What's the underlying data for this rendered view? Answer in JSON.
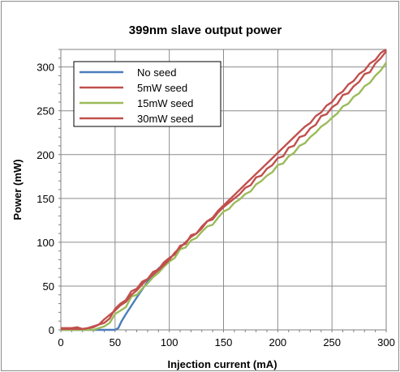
{
  "chart_data": {
    "type": "line",
    "title": "399nm slave output power",
    "xlabel": "Injection current (mA)",
    "ylabel": "Power (mW)",
    "xlim": [
      0,
      300
    ],
    "ylim": [
      0,
      320
    ],
    "xticks": [
      "0",
      "50",
      "100",
      "150",
      "200",
      "250",
      "300"
    ],
    "yticks": [
      "0",
      "50",
      "100",
      "150",
      "200",
      "250",
      "300"
    ],
    "grid": true,
    "legend_position": "top-left",
    "series": [
      {
        "name": "No seed",
        "color": "#4a7ebb",
        "x": [
          0,
          30,
          50,
          53,
          56,
          60,
          70,
          80,
          90,
          100
        ],
        "y": [
          0,
          0,
          0,
          2,
          10,
          18,
          37,
          55,
          70,
          80
        ]
      },
      {
        "name": "5mW seed",
        "color": "#c0504d",
        "x": [
          0,
          10,
          15,
          20,
          25,
          30,
          35,
          40,
          45,
          50,
          55,
          60,
          65,
          70,
          75,
          80,
          85,
          90,
          95,
          100,
          105,
          110,
          115,
          120,
          125,
          130,
          135,
          140,
          145,
          150,
          155,
          160,
          165,
          170,
          175,
          180,
          185,
          190,
          195,
          200,
          205,
          210,
          215,
          220,
          225,
          230,
          235,
          240,
          245,
          250,
          255,
          260,
          265,
          270,
          275,
          280,
          285,
          290,
          295,
          300
        ],
        "y": [
          2,
          2,
          3,
          1,
          2,
          4,
          6,
          8,
          13,
          24,
          30,
          34,
          44,
          47,
          55,
          58,
          66,
          69,
          77,
          82,
          86,
          96,
          98,
          108,
          110,
          116,
          124,
          126,
          134,
          140,
          145,
          150,
          155,
          162,
          165,
          174,
          176,
          184,
          188,
          196,
          198,
          208,
          210,
          220,
          222,
          230,
          234,
          244,
          246,
          254,
          258,
          268,
          270,
          278,
          283,
          292,
          294,
          304,
          310,
          318
        ]
      },
      {
        "name": "15mW seed",
        "color": "#9bbb59",
        "x": [
          0,
          30,
          40,
          45,
          50,
          55,
          60,
          65,
          70,
          75,
          80,
          85,
          90,
          95,
          100,
          105,
          110,
          115,
          120,
          125,
          130,
          135,
          140,
          145,
          150,
          155,
          160,
          165,
          170,
          175,
          180,
          185,
          190,
          195,
          200,
          205,
          210,
          215,
          220,
          225,
          230,
          235,
          240,
          245,
          250,
          255,
          260,
          265,
          270,
          275,
          280,
          285,
          290,
          295,
          300
        ],
        "y": [
          0,
          0,
          4,
          8,
          18,
          22,
          26,
          38,
          40,
          47,
          53,
          60,
          65,
          72,
          78,
          82,
          92,
          94,
          102,
          105,
          112,
          118,
          120,
          128,
          135,
          138,
          145,
          149,
          155,
          158,
          166,
          170,
          176,
          180,
          188,
          190,
          198,
          202,
          210,
          213,
          220,
          225,
          232,
          236,
          242,
          247,
          255,
          258,
          266,
          270,
          278,
          282,
          290,
          296,
          305
        ]
      },
      {
        "name": "30mW seed",
        "color": "#c0504d",
        "x": [
          0,
          20,
          30,
          35,
          40,
          45,
          50,
          55,
          60,
          65,
          70,
          75,
          80,
          85,
          90,
          95,
          100,
          105,
          110,
          115,
          120,
          125,
          130,
          135,
          140,
          145,
          150,
          155,
          160,
          165,
          170,
          175,
          180,
          185,
          190,
          195,
          200,
          205,
          210,
          215,
          220,
          225,
          230,
          235,
          240,
          245,
          250,
          255,
          260,
          265,
          270,
          275,
          280,
          285,
          290,
          295,
          300
        ],
        "y": [
          1,
          1,
          3,
          6,
          12,
          17,
          22,
          28,
          32,
          40,
          45,
          52,
          58,
          63,
          68,
          74,
          80,
          88,
          94,
          100,
          106,
          110,
          118,
          124,
          128,
          136,
          142,
          148,
          154,
          160,
          166,
          172,
          178,
          184,
          190,
          196,
          202,
          208,
          214,
          220,
          226,
          232,
          236,
          244,
          248,
          256,
          260,
          268,
          272,
          280,
          284,
          292,
          296,
          304,
          308,
          316,
          320
        ]
      }
    ]
  }
}
